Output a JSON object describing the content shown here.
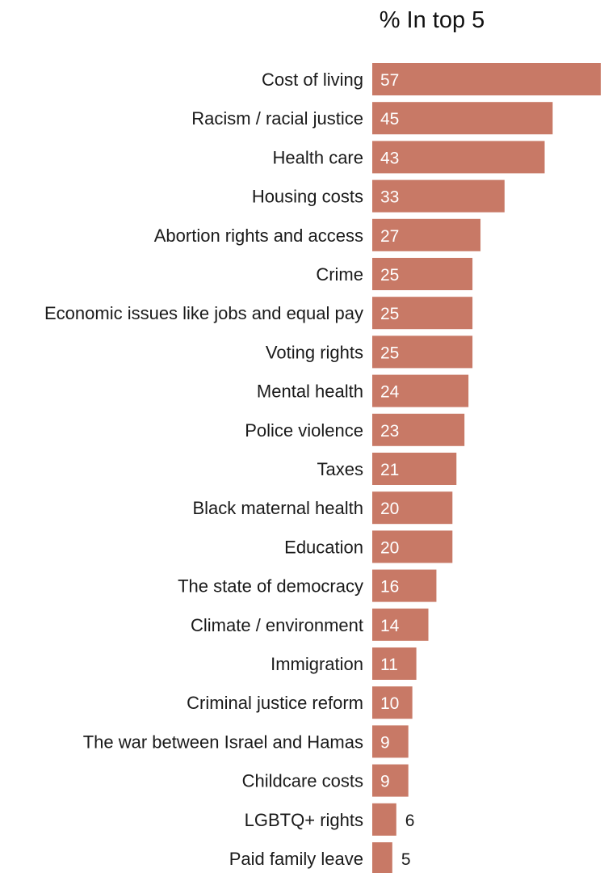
{
  "chart_data": {
    "type": "bar",
    "orientation": "horizontal",
    "title": "% In top 5",
    "categories": [
      "Cost of living",
      "Racism / racial justice",
      "Health care",
      "Housing costs",
      "Abortion rights and access",
      "Crime",
      "Economic issues like jobs and equal pay",
      "Voting rights",
      "Mental health",
      "Police violence",
      "Taxes",
      "Black maternal health",
      "Education",
      "The state of democracy",
      "Climate / environment",
      "Immigration",
      "Criminal justice reform",
      "The war between Israel and Hamas",
      "Childcare costs",
      "LGBTQ+ rights",
      "Paid family leave"
    ],
    "values": [
      57,
      45,
      43,
      33,
      27,
      25,
      25,
      25,
      24,
      23,
      21,
      20,
      20,
      16,
      14,
      11,
      10,
      9,
      9,
      6,
      5
    ],
    "xlim": [
      0,
      57
    ],
    "grid": false,
    "legend": "none",
    "colors": {
      "bar": "#c87966",
      "value_inside": "#ffffff",
      "value_outside": "#1a1a1a",
      "label": "#1a1a1a"
    }
  }
}
